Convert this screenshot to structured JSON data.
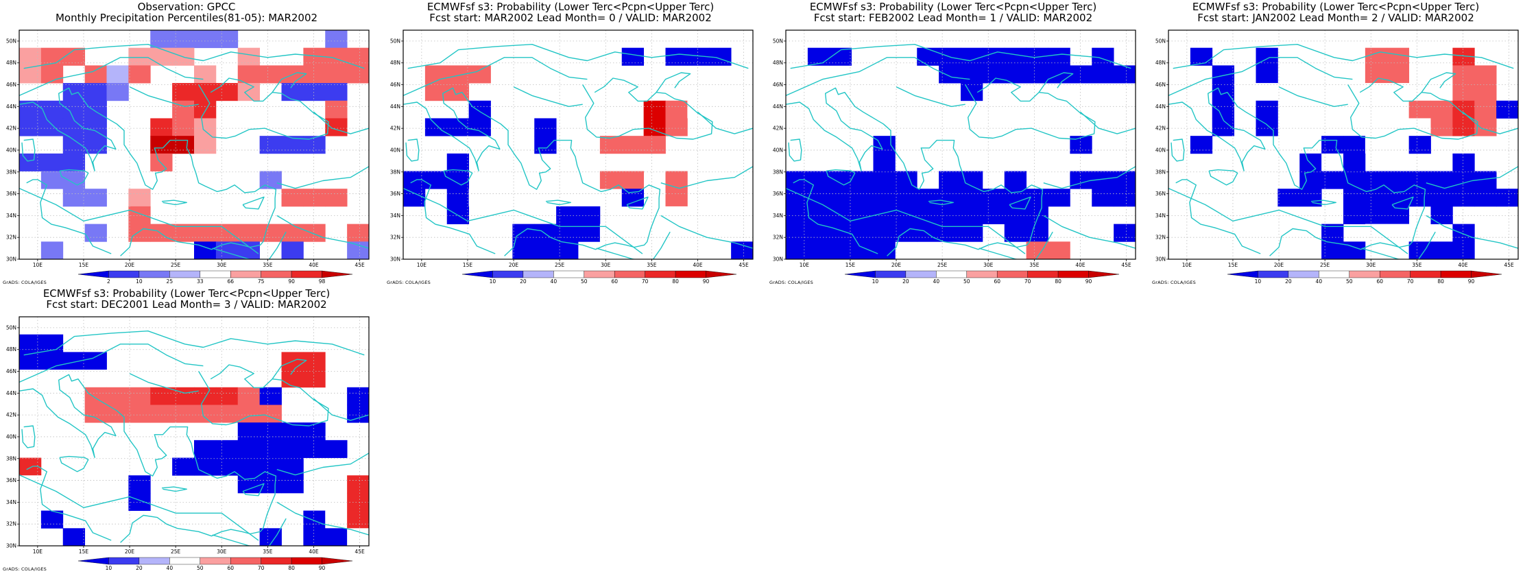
{
  "colors": {
    "ocean_coast": "#22c5c5",
    "frame": "#000000",
    "grid": "#bdbdbd"
  },
  "credit_label": "GrADS: COLA/IGES",
  "panels": [
    {
      "title_line1": "Observation: GPCC",
      "title_line2": "Monthly Precipitation Percentiles(81-05): MAR2002",
      "colorbar": {
        "labels": [
          "2",
          "10",
          "25",
          "33",
          "66",
          "75",
          "90",
          "98"
        ],
        "colors": [
          "#0000e6",
          "#3c3cf0",
          "#7878f5",
          "#b4b4fa",
          "#ffffff",
          "#faa0a0",
          "#f56464",
          "#eb2828",
          "#c80000"
        ]
      },
      "grid": [
        [
          0,
          0,
          0,
          0,
          0,
          0,
          3,
          3,
          3,
          3,
          0,
          0,
          0,
          0,
          3,
          0
        ],
        [
          5,
          6,
          6,
          0,
          0,
          5,
          5,
          5,
          0,
          0,
          5,
          0,
          0,
          6,
          6,
          6
        ],
        [
          5,
          6,
          0,
          6,
          4,
          6,
          0,
          0,
          5,
          0,
          6,
          6,
          6,
          6,
          6,
          6
        ],
        [
          0,
          0,
          2,
          2,
          3,
          0,
          0,
          7,
          7,
          7,
          5,
          0,
          2,
          2,
          2,
          0
        ],
        [
          2,
          2,
          2,
          2,
          0,
          0,
          0,
          6,
          7,
          0,
          0,
          0,
          0,
          0,
          6,
          0
        ],
        [
          2,
          2,
          2,
          2,
          0,
          0,
          7,
          6,
          5,
          0,
          0,
          0,
          0,
          0,
          7,
          0
        ],
        [
          0,
          0,
          2,
          2,
          0,
          0,
          8,
          8,
          5,
          0,
          0,
          2,
          2,
          2,
          0,
          0
        ],
        [
          2,
          2,
          2,
          0,
          0,
          0,
          6,
          0,
          0,
          0,
          0,
          0,
          0,
          0,
          0,
          0
        ],
        [
          0,
          3,
          3,
          0,
          0,
          0,
          0,
          0,
          0,
          0,
          0,
          3,
          0,
          0,
          0,
          0
        ],
        [
          0,
          0,
          3,
          3,
          0,
          5,
          0,
          0,
          0,
          0,
          0,
          0,
          6,
          6,
          6,
          0
        ],
        [
          0,
          0,
          0,
          0,
          0,
          6,
          0,
          0,
          0,
          0,
          0,
          0,
          0,
          0,
          0,
          0
        ],
        [
          0,
          0,
          0,
          3,
          0,
          6,
          6,
          6,
          6,
          6,
          6,
          6,
          6,
          6,
          0,
          6
        ],
        [
          0,
          3,
          0,
          0,
          0,
          0,
          0,
          0,
          1,
          2,
          2,
          0,
          2,
          0,
          0,
          3
        ]
      ]
    },
    {
      "title_line1": "ECMWFsf s3: Probability (Lower Terc<Pcpn<Upper Terc)",
      "title_line2": "Fcst start: MAR2002   Lead Month= 0 / VALID: MAR2002",
      "colorbar": {
        "labels": [
          "10",
          "20",
          "40",
          "50",
          "60",
          "70",
          "80",
          "90"
        ],
        "colors": [
          "#0000e6",
          "#3c3cf0",
          "#b4b4fa",
          "#ffffff",
          "#faa0a0",
          "#f56464",
          "#eb2828",
          "#dc0000",
          "#c80000"
        ]
      },
      "grid": [
        [
          0,
          0,
          0,
          0,
          0,
          0,
          0,
          0,
          0,
          0,
          0,
          0,
          0,
          0,
          0,
          0
        ],
        [
          4,
          4,
          4,
          4,
          4,
          4,
          0,
          0,
          4,
          0,
          1,
          0,
          1,
          1,
          1,
          0
        ],
        [
          4,
          5,
          5,
          5,
          0,
          0,
          4,
          0,
          0,
          0,
          0,
          0,
          0,
          0,
          0,
          0
        ],
        [
          4,
          5,
          5,
          0,
          0,
          0,
          4,
          0,
          0,
          0,
          0,
          0,
          0,
          0,
          0,
          0
        ],
        [
          0,
          0,
          0,
          1,
          0,
          0,
          0,
          0,
          0,
          0,
          4,
          7,
          5,
          4,
          4,
          0
        ],
        [
          0,
          1,
          1,
          1,
          0,
          0,
          1,
          0,
          4,
          0,
          4,
          7,
          5,
          0,
          0,
          0
        ],
        [
          0,
          0,
          0,
          0,
          0,
          0,
          1,
          0,
          0,
          5,
          5,
          5,
          0,
          0,
          0,
          0
        ],
        [
          0,
          0,
          1,
          0,
          0,
          0,
          0,
          0,
          0,
          0,
          0,
          0,
          0,
          0,
          0,
          0
        ],
        [
          1,
          1,
          1,
          0,
          4,
          4,
          0,
          0,
          0,
          5,
          5,
          0,
          5,
          0,
          0,
          0
        ],
        [
          1,
          0,
          1,
          4,
          0,
          0,
          0,
          0,
          0,
          0,
          1,
          0,
          5,
          0,
          0,
          0
        ],
        [
          0,
          0,
          1,
          0,
          0,
          4,
          0,
          1,
          1,
          0,
          0,
          0,
          4,
          0,
          0,
          0
        ],
        [
          0,
          0,
          0,
          0,
          0,
          1,
          1,
          1,
          1,
          4,
          4,
          4,
          4,
          4,
          4,
          0
        ],
        [
          0,
          0,
          0,
          0,
          0,
          1,
          1,
          1,
          0,
          0,
          0,
          0,
          0,
          0,
          0,
          1
        ]
      ]
    },
    {
      "title_line1": "ECMWFsf s3: Probability (Lower Terc<Pcpn<Upper Terc)",
      "title_line2": "Fcst start: FEB2002   Lead Month= 1 / VALID: MAR2002",
      "colorbar": {
        "labels": [
          "10",
          "20",
          "40",
          "50",
          "60",
          "70",
          "80",
          "90"
        ],
        "colors": [
          "#0000e6",
          "#3c3cf0",
          "#b4b4fa",
          "#ffffff",
          "#faa0a0",
          "#f56464",
          "#eb2828",
          "#dc0000",
          "#c80000"
        ]
      },
      "grid": [
        [
          0,
          0,
          0,
          0,
          0,
          0,
          0,
          0,
          0,
          0,
          0,
          0,
          0,
          0,
          0,
          0
        ],
        [
          0,
          1,
          1,
          0,
          4,
          0,
          1,
          1,
          1,
          1,
          1,
          1,
          1,
          0,
          1,
          0
        ],
        [
          4,
          0,
          0,
          0,
          4,
          0,
          0,
          1,
          1,
          1,
          1,
          1,
          1,
          1,
          1,
          1
        ],
        [
          4,
          0,
          0,
          0,
          0,
          0,
          0,
          0,
          1,
          0,
          0,
          0,
          0,
          0,
          0,
          0
        ],
        [
          0,
          0,
          0,
          0,
          0,
          0,
          0,
          0,
          0,
          0,
          0,
          0,
          0,
          0,
          0,
          0
        ],
        [
          4,
          0,
          0,
          0,
          0,
          0,
          0,
          0,
          0,
          4,
          0,
          0,
          0,
          0,
          0,
          0
        ],
        [
          4,
          4,
          4,
          4,
          1,
          0,
          0,
          0,
          0,
          0,
          0,
          4,
          0,
          1,
          0,
          0
        ],
        [
          0,
          0,
          0,
          0,
          1,
          0,
          0,
          0,
          0,
          0,
          0,
          0,
          0,
          0,
          0,
          0
        ],
        [
          1,
          1,
          1,
          1,
          1,
          1,
          0,
          1,
          1,
          0,
          1,
          0,
          0,
          1,
          1,
          1
        ],
        [
          1,
          1,
          1,
          1,
          1,
          1,
          1,
          1,
          1,
          1,
          1,
          1,
          1,
          0,
          1,
          1
        ],
        [
          1,
          1,
          1,
          1,
          1,
          1,
          1,
          1,
          1,
          1,
          1,
          1,
          0,
          0,
          0,
          0
        ],
        [
          1,
          1,
          1,
          1,
          1,
          1,
          1,
          1,
          1,
          0,
          1,
          1,
          0,
          0,
          0,
          1
        ],
        [
          1,
          1,
          1,
          1,
          1,
          0,
          0,
          0,
          0,
          0,
          0,
          5,
          5,
          0,
          0,
          0
        ]
      ]
    },
    {
      "title_line1": "ECMWFsf s3: Probability (Lower Terc<Pcpn<Upper Terc)",
      "title_line2": "Fcst start: JAN2002   Lead Month= 2 / VALID: MAR2002",
      "colorbar": {
        "labels": [
          "10",
          "20",
          "40",
          "50",
          "60",
          "70",
          "80",
          "90"
        ],
        "colors": [
          "#0000e6",
          "#3c3cf0",
          "#b4b4fa",
          "#ffffff",
          "#faa0a0",
          "#f56464",
          "#eb2828",
          "#dc0000",
          "#c80000"
        ]
      },
      "grid": [
        [
          0,
          0,
          0,
          0,
          0,
          0,
          0,
          0,
          0,
          0,
          0,
          0,
          0,
          0,
          0,
          0
        ],
        [
          0,
          1,
          0,
          0,
          1,
          0,
          0,
          0,
          0,
          5,
          5,
          0,
          0,
          6,
          0,
          0
        ],
        [
          0,
          0,
          1,
          0,
          1,
          0,
          0,
          0,
          0,
          5,
          5,
          0,
          4,
          5,
          5,
          0
        ],
        [
          0,
          0,
          1,
          0,
          4,
          0,
          0,
          0,
          0,
          4,
          4,
          0,
          4,
          5,
          5,
          0
        ],
        [
          0,
          0,
          1,
          0,
          1,
          0,
          0,
          4,
          4,
          4,
          4,
          5,
          5,
          6,
          5,
          1
        ],
        [
          0,
          0,
          1,
          0,
          1,
          0,
          4,
          4,
          4,
          4,
          4,
          4,
          5,
          6,
          5,
          0
        ],
        [
          0,
          1,
          0,
          0,
          0,
          4,
          0,
          1,
          1,
          4,
          0,
          1,
          0,
          0,
          0,
          0
        ],
        [
          0,
          0,
          0,
          0,
          0,
          0,
          1,
          4,
          1,
          0,
          0,
          0,
          0,
          1,
          0,
          0
        ],
        [
          4,
          0,
          0,
          0,
          0,
          0,
          1,
          1,
          1,
          1,
          1,
          1,
          1,
          1,
          1,
          0
        ],
        [
          4,
          0,
          0,
          0,
          0,
          1,
          1,
          0,
          1,
          1,
          1,
          1,
          1,
          1,
          1,
          1
        ],
        [
          4,
          0,
          0,
          0,
          0,
          0,
          0,
          0,
          1,
          1,
          1,
          0,
          1,
          0,
          0,
          0
        ],
        [
          4,
          0,
          0,
          0,
          0,
          0,
          0,
          1,
          0,
          4,
          4,
          0,
          0,
          1,
          0,
          4
        ],
        [
          4,
          0,
          0,
          0,
          0,
          0,
          0,
          1,
          1,
          0,
          0,
          1,
          1,
          1,
          0,
          0
        ]
      ]
    },
    {
      "title_line1": "ECMWFsf s3: Probability (Lower Terc<Pcpn<Upper Terc)",
      "title_line2": "Fcst start: DEC2001   Lead Month= 3 / VALID: MAR2002",
      "colorbar": {
        "labels": [
          "10",
          "20",
          "40",
          "50",
          "60",
          "70",
          "80",
          "90"
        ],
        "colors": [
          "#0000e6",
          "#3c3cf0",
          "#b4b4fa",
          "#ffffff",
          "#faa0a0",
          "#f56464",
          "#eb2828",
          "#dc0000",
          "#c80000"
        ]
      },
      "grid": [
        [
          0,
          0,
          0,
          0,
          0,
          0,
          0,
          0,
          0,
          0,
          0,
          0,
          0,
          0,
          0,
          0
        ],
        [
          1,
          1,
          0,
          0,
          0,
          0,
          0,
          0,
          0,
          4,
          4,
          0,
          0,
          0,
          0,
          0
        ],
        [
          1,
          1,
          1,
          1,
          0,
          0,
          0,
          4,
          0,
          0,
          0,
          0,
          6,
          6,
          0,
          0
        ],
        [
          4,
          4,
          4,
          4,
          4,
          0,
          0,
          4,
          0,
          0,
          0,
          0,
          6,
          6,
          0,
          0
        ],
        [
          4,
          4,
          4,
          5,
          5,
          5,
          6,
          6,
          6,
          6,
          5,
          1,
          0,
          0,
          0,
          1
        ],
        [
          4,
          0,
          4,
          5,
          5,
          5,
          5,
          5,
          5,
          5,
          5,
          5,
          0,
          0,
          0,
          1
        ],
        [
          0,
          0,
          0,
          0,
          0,
          0,
          0,
          0,
          0,
          0,
          1,
          1,
          1,
          1,
          0,
          0
        ],
        [
          0,
          0,
          0,
          0,
          0,
          0,
          0,
          0,
          1,
          1,
          1,
          1,
          1,
          1,
          1,
          0
        ],
        [
          6,
          0,
          4,
          4,
          0,
          0,
          0,
          1,
          1,
          1,
          1,
          1,
          1,
          0,
          0,
          4
        ],
        [
          4,
          4,
          4,
          4,
          4,
          1,
          0,
          0,
          0,
          0,
          1,
          1,
          1,
          0,
          0,
          6
        ],
        [
          0,
          0,
          0,
          4,
          0,
          1,
          0,
          0,
          0,
          0,
          0,
          0,
          0,
          0,
          0,
          6
        ],
        [
          0,
          1,
          0,
          0,
          0,
          0,
          0,
          4,
          4,
          4,
          4,
          0,
          0,
          1,
          4,
          6
        ],
        [
          0,
          0,
          1,
          0,
          0,
          0,
          0,
          0,
          0,
          0,
          0,
          1,
          0,
          1,
          1,
          4
        ]
      ]
    }
  ],
  "lon_ticks": [
    "10E",
    "15E",
    "20E",
    "25E",
    "30E",
    "35E",
    "40E",
    "45E"
  ],
  "lat_ticks": [
    "50N",
    "48N",
    "46N",
    "44N",
    "42N",
    "40N",
    "38N",
    "36N",
    "34N",
    "32N",
    "30N"
  ]
}
